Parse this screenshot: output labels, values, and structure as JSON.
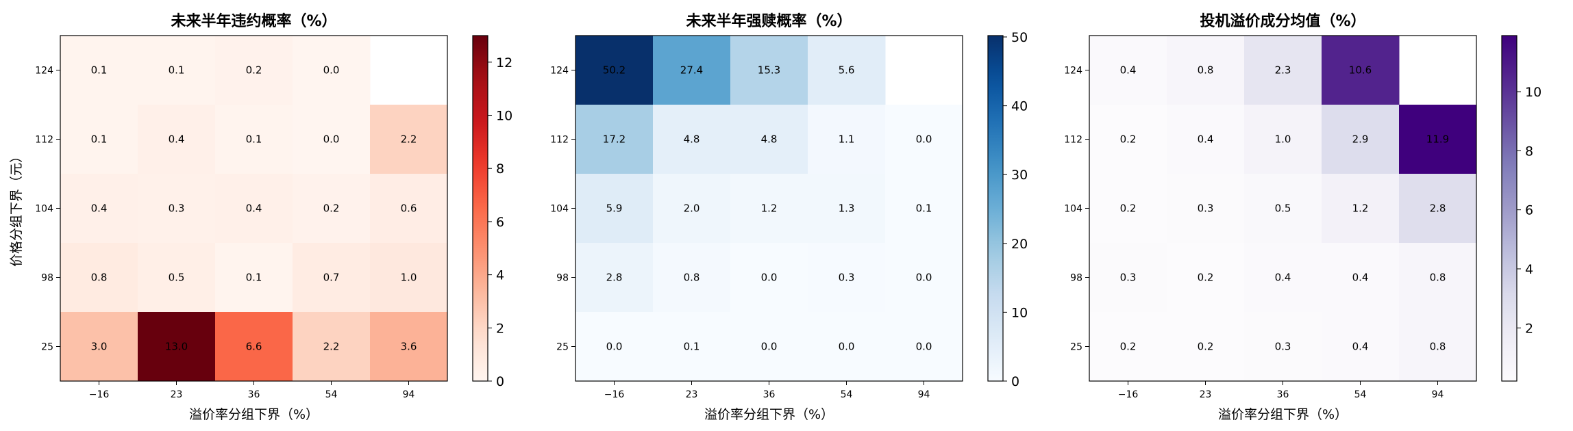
{
  "chart_data": [
    {
      "type": "heatmap",
      "title": "未来半年违约概率（%）",
      "xlabel": "溢价率分组下界（%）",
      "ylabel": "价格分组下界（元）",
      "x_categories": [
        "−16",
        "23",
        "36",
        "54",
        "94"
      ],
      "y_categories": [
        "124",
        "112",
        "104",
        "98",
        "25"
      ],
      "values": [
        [
          0.1,
          0.1,
          0.2,
          0.0,
          null
        ],
        [
          0.1,
          0.4,
          0.1,
          0.0,
          2.2
        ],
        [
          0.4,
          0.3,
          0.4,
          0.2,
          0.6
        ],
        [
          0.8,
          0.5,
          0.1,
          0.7,
          1.0
        ],
        [
          3.0,
          13.0,
          6.6,
          2.2,
          3.6
        ]
      ],
      "labels": [
        [
          "0.1",
          "0.1",
          "0.2",
          "0.0",
          ""
        ],
        [
          "0.1",
          "0.4",
          "0.1",
          "0.0",
          "2.2"
        ],
        [
          "0.4",
          "0.3",
          "0.4",
          "0.2",
          "0.6"
        ],
        [
          "0.8",
          "0.5",
          "0.1",
          "0.7",
          "1.0"
        ],
        [
          "3.0",
          "13.0",
          "6.6",
          "2.2",
          "3.6"
        ]
      ],
      "colormap": "Reds",
      "vmin": 0,
      "vmax": 13.0,
      "colorbar_ticks": [
        "0",
        "2",
        "4",
        "6",
        "8",
        "10",
        "12"
      ]
    },
    {
      "type": "heatmap",
      "title": "未来半年强赎概率（%）",
      "xlabel": "溢价率分组下界（%）",
      "ylabel": "",
      "x_categories": [
        "−16",
        "23",
        "36",
        "54",
        "94"
      ],
      "y_categories": [
        "124",
        "112",
        "104",
        "98",
        "25"
      ],
      "values": [
        [
          50.2,
          27.4,
          15.3,
          5.6,
          null
        ],
        [
          17.2,
          4.8,
          4.8,
          1.1,
          0.0
        ],
        [
          5.9,
          2.0,
          1.2,
          1.3,
          0.1
        ],
        [
          2.8,
          0.8,
          0.0,
          0.3,
          0.0
        ],
        [
          0.0,
          0.1,
          0.0,
          0.0,
          0.0
        ]
      ],
      "labels": [
        [
          "50.2",
          "27.4",
          "15.3",
          "5.6",
          ""
        ],
        [
          "17.2",
          "4.8",
          "4.8",
          "1.1",
          "0.0"
        ],
        [
          "5.9",
          "2.0",
          "1.2",
          "1.3",
          "0.1"
        ],
        [
          "2.8",
          "0.8",
          "0.0",
          "0.3",
          "0.0"
        ],
        [
          "0.0",
          "0.1",
          "0.0",
          "0.0",
          "0.0"
        ]
      ],
      "colormap": "Blues",
      "vmin": 0,
      "vmax": 50.2,
      "colorbar_ticks": [
        "0",
        "10",
        "20",
        "30",
        "40",
        "50"
      ]
    },
    {
      "type": "heatmap",
      "title": "投机溢价成分均值（%）",
      "xlabel": "溢价率分组下界（%）",
      "ylabel": "",
      "x_categories": [
        "−16",
        "23",
        "36",
        "54",
        "94"
      ],
      "y_categories": [
        "124",
        "112",
        "104",
        "98",
        "25"
      ],
      "values": [
        [
          0.4,
          0.8,
          2.3,
          10.6,
          null
        ],
        [
          0.2,
          0.4,
          1.0,
          2.9,
          11.9
        ],
        [
          0.2,
          0.3,
          0.5,
          1.2,
          2.8
        ],
        [
          0.3,
          0.2,
          0.4,
          0.4,
          0.8
        ],
        [
          0.2,
          0.2,
          0.3,
          0.4,
          0.8
        ]
      ],
      "labels": [
        [
          "0.4",
          "0.8",
          "2.3",
          "10.6",
          ""
        ],
        [
          "0.2",
          "0.4",
          "1.0",
          "2.9",
          "11.9"
        ],
        [
          "0.2",
          "0.3",
          "0.5",
          "1.2",
          "2.8"
        ],
        [
          "0.3",
          "0.2",
          "0.4",
          "0.4",
          "0.8"
        ],
        [
          "0.2",
          "0.2",
          "0.3",
          "0.4",
          "0.8"
        ]
      ],
      "colormap": "Purples",
      "vmin": 0.2,
      "vmax": 11.9,
      "colorbar_ticks": [
        "2",
        "4",
        "6",
        "8",
        "10"
      ],
      "colorbar_tick_values": [
        2,
        4,
        6,
        8,
        10
      ]
    }
  ]
}
